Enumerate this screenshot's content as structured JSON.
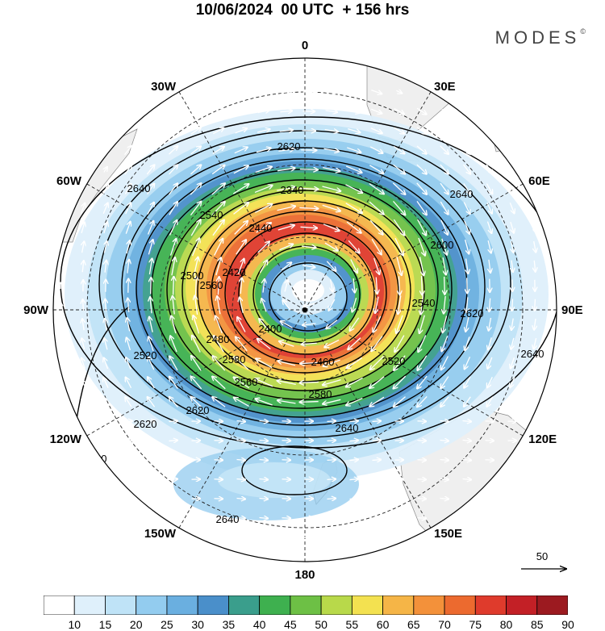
{
  "title": "10/06/2024  00 UTC  + 156 hrs",
  "brand": "MODES",
  "brand_mark": "©",
  "longitude_labels": [
    "0",
    "30E",
    "60E",
    "90E",
    "120E",
    "150E",
    "180",
    "150W",
    "120W",
    "90W",
    "60W",
    "30W"
  ],
  "vector_reference": "50",
  "colorbar": {
    "labels": [
      "10",
      "15",
      "20",
      "25",
      "30",
      "35",
      "40",
      "45",
      "50",
      "55",
      "60",
      "65",
      "70",
      "75",
      "80",
      "85",
      "90"
    ],
    "colors": [
      "#ffffff",
      "#dff0fb",
      "#bfe3f7",
      "#93ccef",
      "#6aafe0",
      "#4a8fca",
      "#3a9e8c",
      "#3eb04f",
      "#6dc045",
      "#b8d94a",
      "#f3e150",
      "#f5b547",
      "#f3913a",
      "#ec6a2f",
      "#df3b2c",
      "#c32026",
      "#9c1a20"
    ]
  },
  "contours": {
    "values": [
      "2400",
      "2420",
      "2440",
      "2460",
      "2480",
      "2500",
      "2520",
      "2540",
      "2560",
      "2580",
      "2600",
      "2620",
      "2640"
    ]
  },
  "contour_labels": [
    {
      "text": "2620"
    },
    {
      "text": "2340"
    },
    {
      "text": "2540"
    },
    {
      "text": "2440"
    },
    {
      "text": "2640"
    },
    {
      "text": "2600"
    },
    {
      "text": "2620"
    },
    {
      "text": "2640"
    },
    {
      "text": "2540"
    },
    {
      "text": "2520"
    },
    {
      "text": "2560"
    },
    {
      "text": "2460"
    },
    {
      "text": "2580"
    },
    {
      "text": "2640"
    },
    {
      "text": "2620"
    },
    {
      "text": "2620"
    },
    {
      "text": "2580"
    },
    {
      "text": "2520"
    },
    {
      "text": "2560"
    },
    {
      "text": "2500"
    },
    {
      "text": "2420"
    },
    {
      "text": "2400"
    },
    {
      "text": "2480"
    },
    {
      "text": "2640"
    },
    {
      "text": "2640"
    },
    {
      "text": "2640"
    }
  ]
}
